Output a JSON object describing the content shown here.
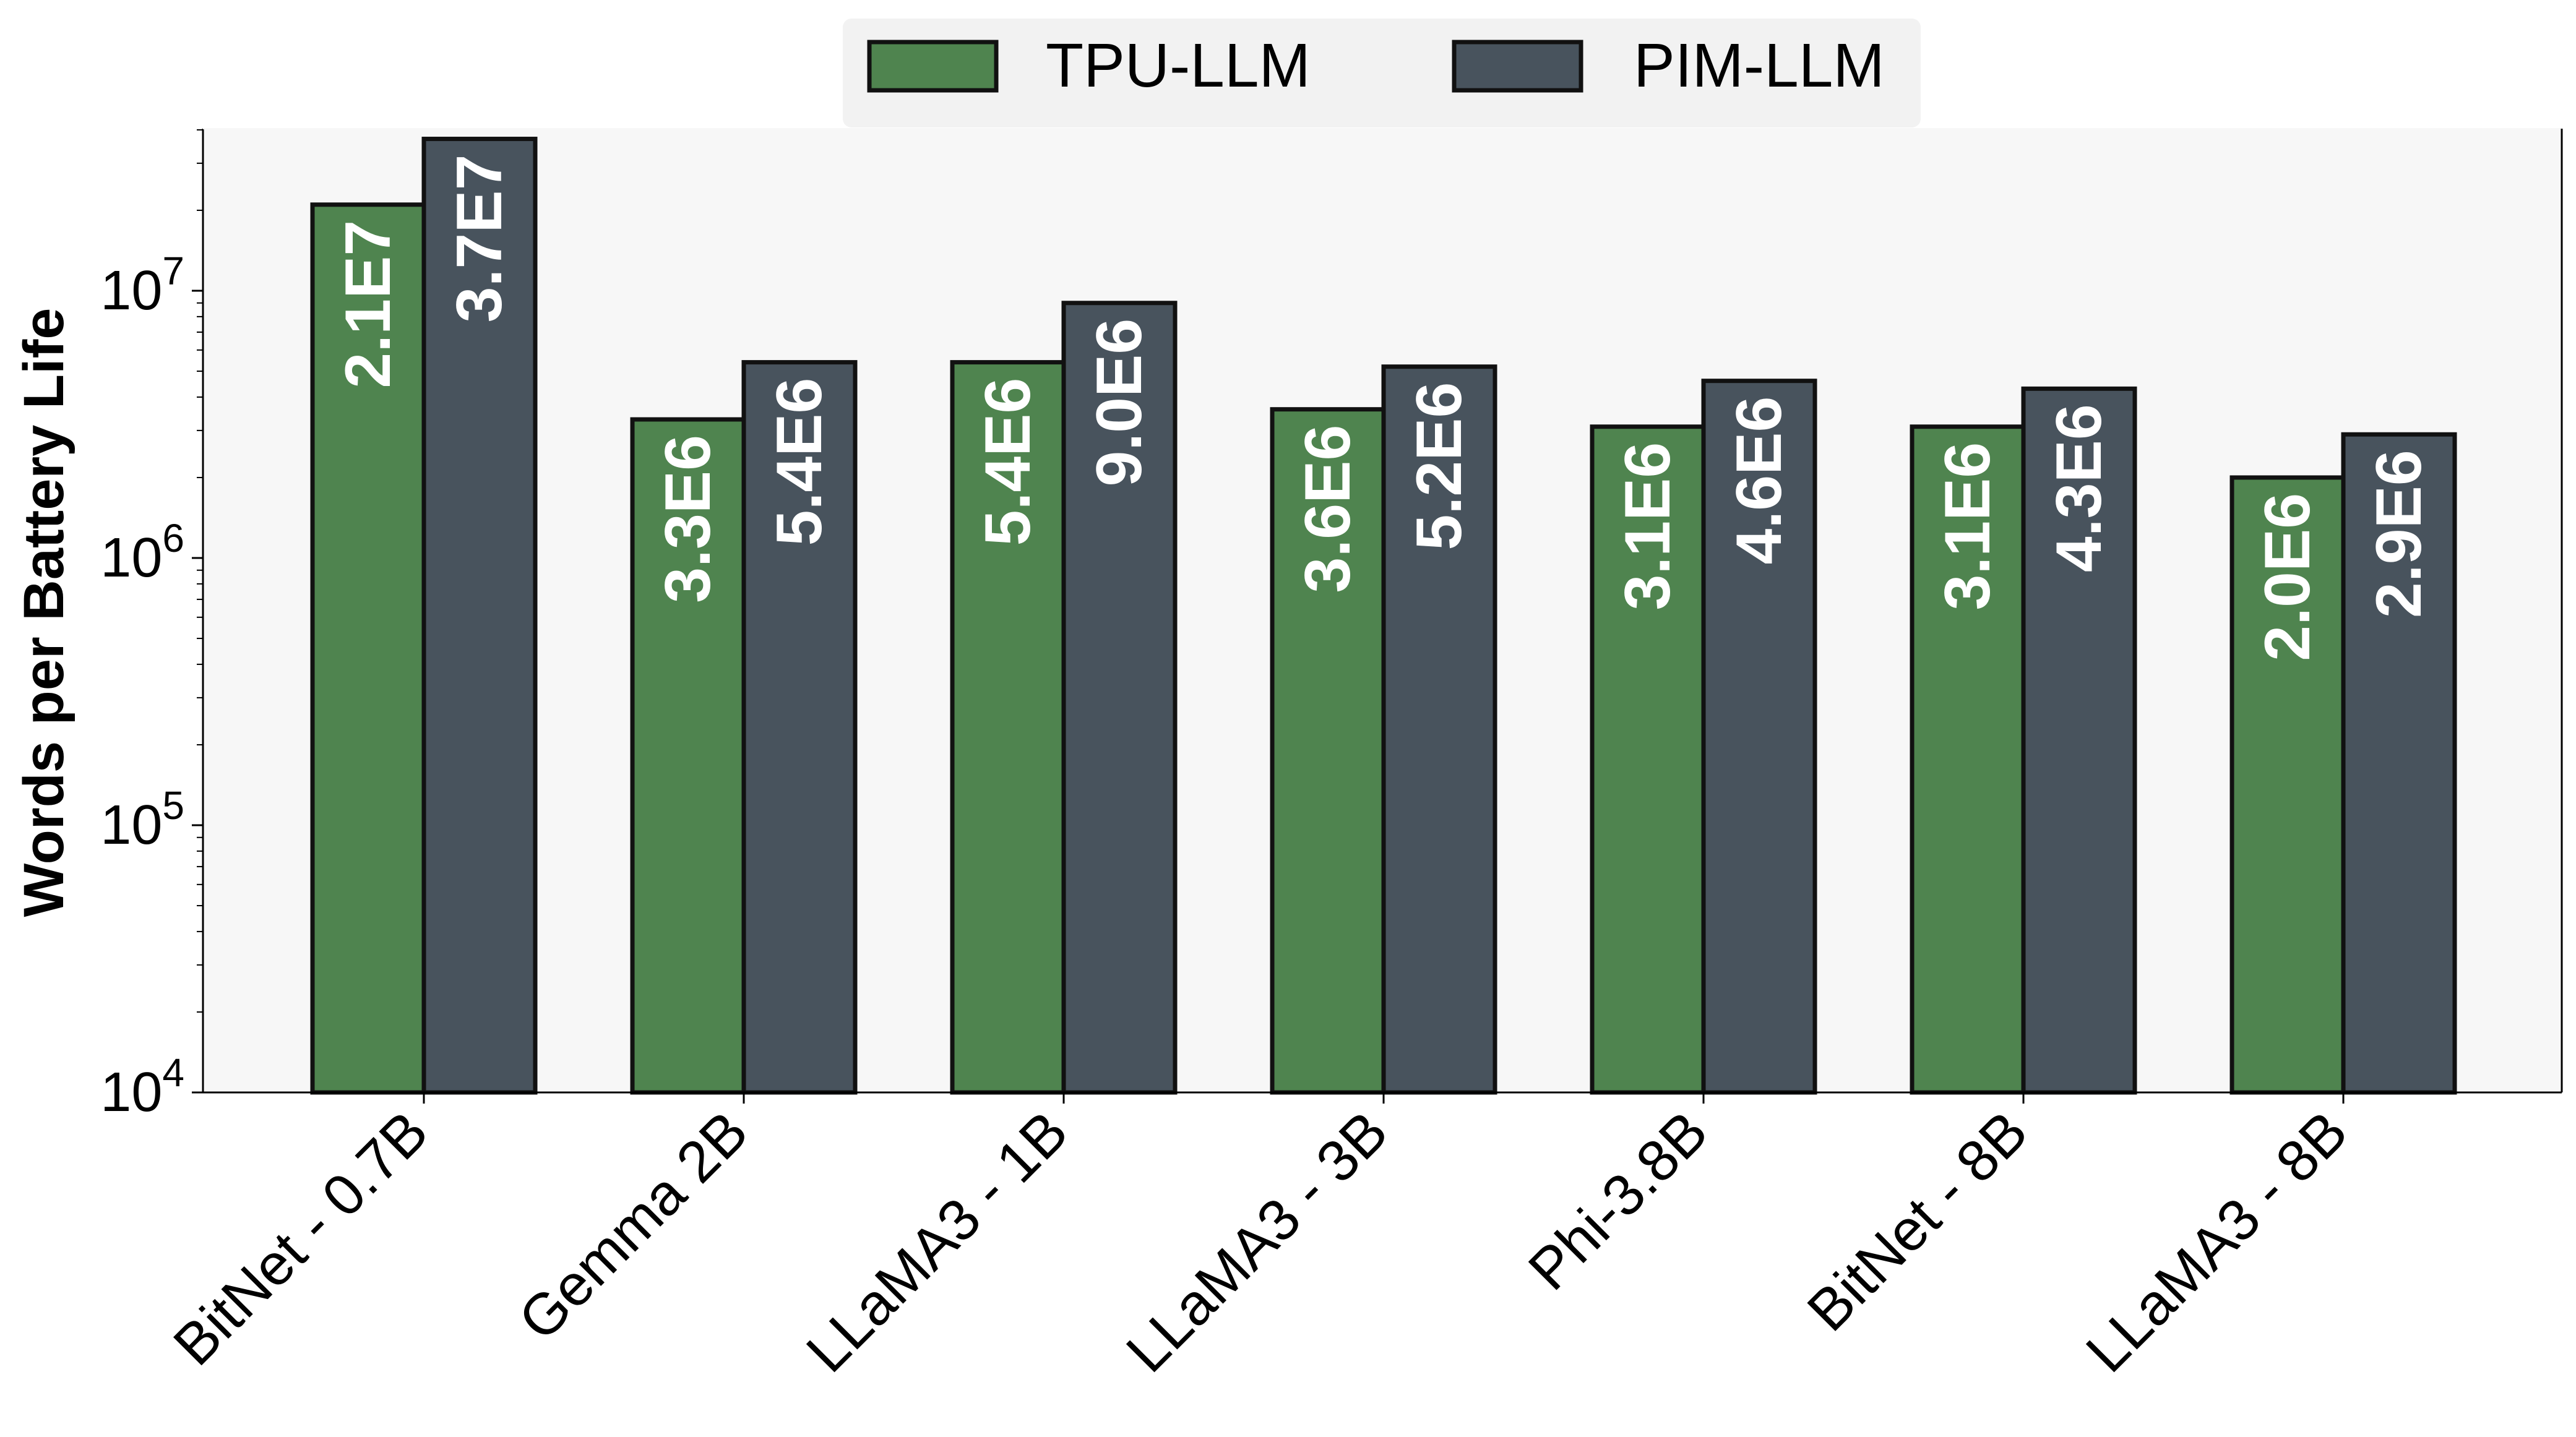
{
  "chart_data": {
    "type": "bar",
    "title": "",
    "xlabel": "",
    "ylabel": "Words per Battery Life",
    "yscale": "log",
    "ylim": [
      10000,
      46000000
    ],
    "yticks": [
      {
        "value": 10000,
        "base": "10",
        "exp": "4"
      },
      {
        "value": 100000,
        "base": "10",
        "exp": "5"
      },
      {
        "value": 1000000,
        "base": "10",
        "exp": "6"
      },
      {
        "value": 10000000,
        "base": "10",
        "exp": "7"
      }
    ],
    "categories": [
      "BitNet - 0.7B",
      "Gemma 2B",
      "LLaMA3 - 1B",
      "LLaMA3 - 3B",
      "Phi-3.8B",
      "BitNet - 8B",
      "LLaMA3 - 8B"
    ],
    "series": [
      {
        "name": "TPU-LLM",
        "color": "#4f844f",
        "values": [
          21000000,
          3300000,
          5400000,
          3600000,
          3100000,
          3100000,
          2000000
        ],
        "labels": [
          "2.1E7",
          "3.3E6",
          "5.4E6",
          "3.6E6",
          "3.1E6",
          "3.1E6",
          "2.0E6"
        ]
      },
      {
        "name": "PIM-LLM",
        "color": "#48535d",
        "values": [
          37000000,
          5400000,
          9000000,
          5200000,
          4600000,
          4300000,
          2900000
        ],
        "labels": [
          "3.7E7",
          "5.4E6",
          "9.0E6",
          "5.2E6",
          "4.6E6",
          "4.3E6",
          "2.9E6"
        ]
      }
    ],
    "grid": false,
    "legend_position": "top-center",
    "plot_background": "#f7f7f7",
    "legend_background": "#f2f2f2"
  }
}
